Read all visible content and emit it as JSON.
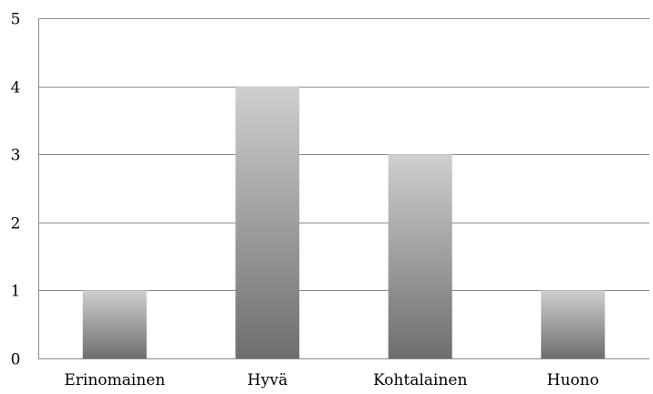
{
  "chart_data": {
    "type": "bar",
    "categories": [
      "Erinomainen",
      "Hyvä",
      "Kohtalainen",
      "Huono"
    ],
    "values": [
      1,
      4,
      3,
      1
    ],
    "title": "",
    "xlabel": "",
    "ylabel": "",
    "ylim": [
      0,
      5
    ],
    "yticks": [
      0,
      1,
      2,
      3,
      4,
      5
    ],
    "grid": true,
    "legend": "none",
    "bar_gradient": [
      "#cfcfcf",
      "#6e6e6e"
    ]
  }
}
